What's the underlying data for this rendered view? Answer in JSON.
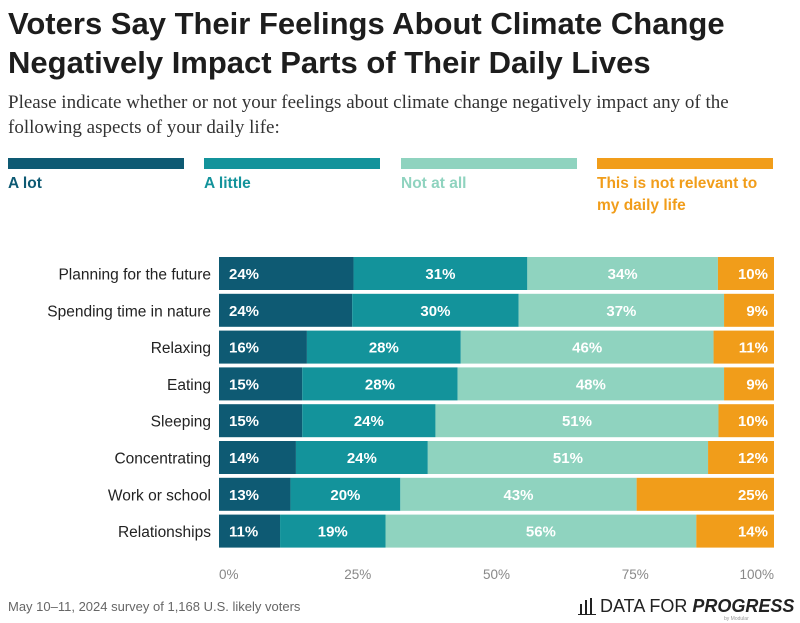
{
  "title": "Voters Say Their Feelings About Climate Change Negatively Impact Parts of Their Daily Lives",
  "subtitle": "Please indicate whether or not your feelings about climate change negatively impact any of the following aspects of your daily life:",
  "footer": {
    "note": "May 10–11, 2024 survey of 1,168 U.S. likely voters",
    "brand_plain": "DATA FOR",
    "brand_bold": "PROGRESS",
    "brand_sub": "by Modular"
  },
  "colors": {
    "a_lot": "#0e5a73",
    "a_little": "#13939b",
    "not_at_all": "#8fd3bf",
    "not_relevant": "#f19d1a"
  },
  "chart_data": {
    "type": "bar",
    "orientation": "horizontal",
    "stacked": true,
    "categories": [
      "Planning for the future",
      "Spending time in nature",
      "Relaxing",
      "Eating",
      "Sleeping",
      "Concentrating",
      "Work or school",
      "Relationships"
    ],
    "series": [
      {
        "name": "A lot",
        "color": "#0e5a73",
        "values": [
          24,
          24,
          16,
          15,
          15,
          14,
          13,
          11
        ]
      },
      {
        "name": "A little",
        "color": "#13939b",
        "values": [
          31,
          30,
          28,
          28,
          24,
          24,
          20,
          19
        ]
      },
      {
        "name": "Not at all",
        "color": "#8fd3bf",
        "values": [
          34,
          37,
          46,
          48,
          51,
          51,
          43,
          56
        ]
      },
      {
        "name": "This is not relevant to my daily life",
        "color": "#f19d1a",
        "values": [
          10,
          9,
          11,
          9,
          10,
          12,
          25,
          14
        ]
      }
    ],
    "legend_labels": [
      "A lot",
      "A little",
      "Not at all",
      "This is not relevant to\nmy daily life"
    ],
    "x_ticks": [
      "0%",
      "25%",
      "50%",
      "75%",
      "100%"
    ],
    "xlim": [
      0,
      100
    ],
    "grid": false,
    "legend": "top"
  }
}
